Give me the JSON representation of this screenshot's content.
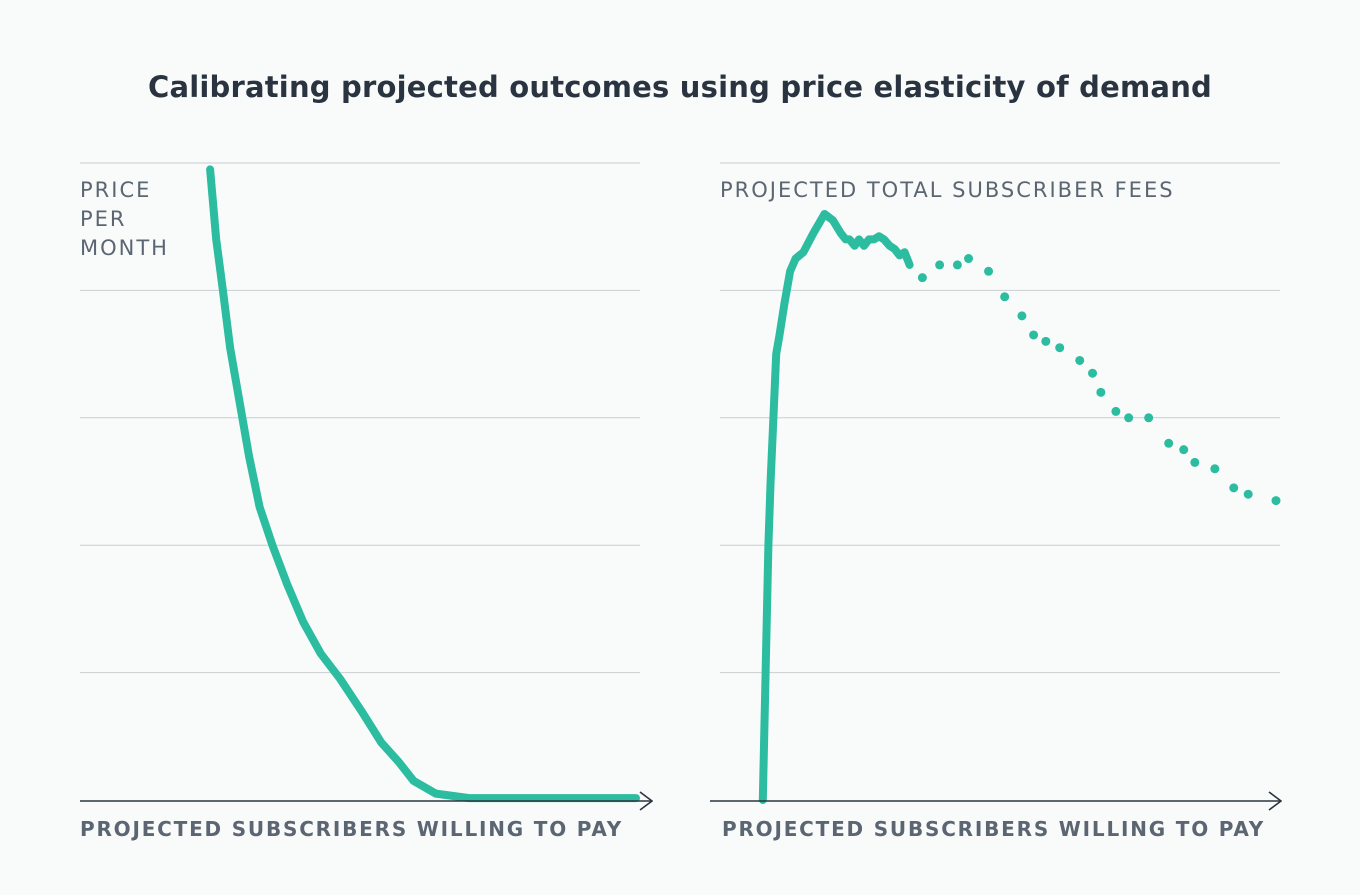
{
  "title": "Calibrating projected outcomes using price elasticity of demand",
  "colors": {
    "series": "#2cbc9f",
    "grid": "#c9ced2",
    "axis": "#2a3440",
    "text": "#5b6672"
  },
  "chart_data": [
    {
      "type": "line",
      "ylabel": [
        "PRICE",
        "PER",
        "MONTH"
      ],
      "xlabel": "PROJECTED SUBSCRIBERS WILLING TO PAY",
      "xlim": [
        0,
        100
      ],
      "ylim": [
        0,
        100
      ],
      "grid": true,
      "gridlines": [
        20,
        40,
        60,
        80,
        100
      ],
      "series": [
        {
          "style": "solid",
          "x": [
            23.4,
            24.5,
            25.7,
            27.0,
            28.6,
            30.4,
            32.3,
            34.6,
            37.2,
            40.1,
            43.3,
            46.8,
            50.6,
            54.2,
            57.3,
            60.0,
            64.0,
            70.0,
            80.0,
            90.0,
            100.0
          ],
          "y": [
            99,
            88,
            80,
            71,
            63,
            54,
            46,
            40,
            34,
            28,
            23,
            19,
            14,
            9,
            6,
            3,
            1,
            0.3,
            0.3,
            0.3,
            0.3
          ]
        }
      ]
    },
    {
      "type": "line",
      "ylabel": [
        "PROJECTED TOTAL SUBSCRIBER FEES"
      ],
      "xlabel": "PROJECTED SUBSCRIBERS WILLING TO PAY",
      "xlim": [
        0,
        100
      ],
      "ylim": [
        0,
        100
      ],
      "grid": true,
      "gridlines": [
        20,
        40,
        60,
        80,
        100
      ],
      "series": [
        {
          "style": "solid",
          "x": [
            7.7,
            8.2,
            8.7,
            9.1,
            9.6,
            10.1,
            10.7,
            11.6,
            12.6,
            13.6,
            15.0,
            16.8,
            18.8,
            20.3,
            21.7,
            22.6,
            23.3,
            24.2,
            25.0,
            25.9,
            26.8,
            27.7,
            28.6,
            29.5,
            30.5,
            31.4,
            32.3,
            33.2,
            34.1
          ],
          "y": [
            0,
            20,
            40,
            50,
            60,
            70,
            73,
            78,
            83,
            85,
            86,
            89,
            92,
            91,
            89,
            88,
            88,
            87,
            88,
            87,
            88,
            88,
            88.5,
            88,
            87,
            86.5,
            85.5,
            86,
            84
          ]
        },
        {
          "style": "dotted",
          "x": [
            36.4,
            39.5,
            42.7,
            44.7,
            48.3,
            51.2,
            54.3,
            56.4,
            58.6,
            61.1,
            64.7,
            67.0,
            68.5,
            71.2,
            73.5,
            77.1,
            80.7,
            83.4,
            85.4,
            89.0,
            92.4,
            95.0,
            100.0
          ],
          "y": [
            82,
            84,
            84,
            85,
            83,
            79,
            76,
            73,
            72,
            71,
            69,
            67,
            64,
            61,
            60,
            60,
            56,
            55,
            53,
            52,
            49,
            48,
            47
          ]
        }
      ]
    }
  ]
}
